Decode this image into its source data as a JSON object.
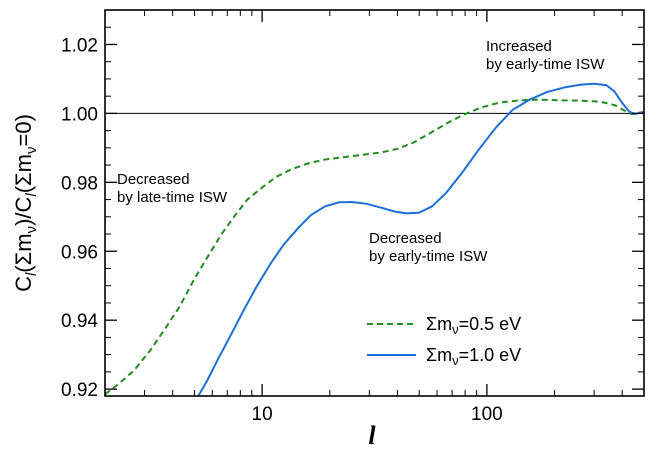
{
  "chart_data": {
    "type": "line",
    "xlabel": "l",
    "ylabel": {
      "parts": [
        {
          "t": "C",
          "s": "n"
        },
        {
          "t": "l",
          "s": "sub-italic"
        },
        {
          "t": "(Σm",
          "s": "n"
        },
        {
          "t": "ν",
          "s": "sub"
        },
        {
          "t": ")/C",
          "s": "n"
        },
        {
          "t": "l",
          "s": "sub-italic"
        },
        {
          "t": "(Σm",
          "s": "n"
        },
        {
          "t": "ν",
          "s": "sub"
        },
        {
          "t": "=0)",
          "s": "n"
        }
      ]
    },
    "x_scale": "log",
    "xlim": [
      2,
      500
    ],
    "ylim": [
      0.918,
      1.03
    ],
    "x_ticks": [
      {
        "value": 10,
        "label": "10"
      },
      {
        "value": 100,
        "label": "100"
      }
    ],
    "y_ticks": [
      {
        "value": 0.92,
        "label": "0.92"
      },
      {
        "value": 0.94,
        "label": "0.94"
      },
      {
        "value": 0.96,
        "label": "0.96"
      },
      {
        "value": 0.98,
        "label": "0.98"
      },
      {
        "value": 1.0,
        "label": "1.00"
      },
      {
        "value": 1.02,
        "label": "1.02"
      }
    ],
    "reference_line": {
      "y": 1.0
    },
    "legend_position": "bottom-right",
    "series": [
      {
        "name": "Σm_ν=0.5 eV",
        "legend": {
          "sym": "Σm",
          "sub": "ν",
          "rest": "=0.5 eV"
        },
        "color": "#228b22",
        "dash": "dashed",
        "points": [
          [
            2.0,
            0.9185
          ],
          [
            2.3,
            0.9215
          ],
          [
            2.7,
            0.9255
          ],
          [
            3.2,
            0.9315
          ],
          [
            3.7,
            0.9375
          ],
          [
            4.3,
            0.944
          ],
          [
            5.0,
            0.952
          ],
          [
            5.8,
            0.959
          ],
          [
            6.6,
            0.965
          ],
          [
            7.6,
            0.9705
          ],
          [
            8.6,
            0.975
          ],
          [
            10,
            0.9785
          ],
          [
            11.5,
            0.9815
          ],
          [
            13.5,
            0.9838
          ],
          [
            16,
            0.9855
          ],
          [
            19,
            0.9866
          ],
          [
            23,
            0.9873
          ],
          [
            28,
            0.988
          ],
          [
            34,
            0.9887
          ],
          [
            40,
            0.9897
          ],
          [
            47,
            0.9915
          ],
          [
            55,
            0.994
          ],
          [
            65,
            0.9968
          ],
          [
            78,
            0.9995
          ],
          [
            95,
            1.0018
          ],
          [
            115,
            1.0032
          ],
          [
            140,
            1.0038
          ],
          [
            170,
            1.004
          ],
          [
            210,
            1.0038
          ],
          [
            260,
            1.0037
          ],
          [
            320,
            1.0034
          ],
          [
            370,
            1.0024
          ],
          [
            410,
            1.0008
          ],
          [
            440,
            0.9998
          ],
          [
            465,
            1.0001
          ],
          [
            485,
            1.0003
          ],
          [
            500,
            1.0004
          ]
        ]
      },
      {
        "name": "Σm_ν=1.0 eV",
        "legend": {
          "sym": "Σm",
          "sub": "ν",
          "rest": "=1.0 eV"
        },
        "color": "#1c6fd6",
        "dash": "solid",
        "points": [
          [
            5.2,
            0.918
          ],
          [
            5.7,
            0.9225
          ],
          [
            6.4,
            0.929
          ],
          [
            7.3,
            0.936
          ],
          [
            8.3,
            0.943
          ],
          [
            9.5,
            0.95
          ],
          [
            11,
            0.9568
          ],
          [
            12.5,
            0.962
          ],
          [
            14.5,
            0.9668
          ],
          [
            16.5,
            0.9705
          ],
          [
            19,
            0.973
          ],
          [
            22,
            0.9742
          ],
          [
            25,
            0.9743
          ],
          [
            29,
            0.9738
          ],
          [
            34,
            0.9726
          ],
          [
            39,
            0.9715
          ],
          [
            44,
            0.971
          ],
          [
            50,
            0.9712
          ],
          [
            57,
            0.973
          ],
          [
            66,
            0.977
          ],
          [
            78,
            0.983
          ],
          [
            92,
            0.9895
          ],
          [
            110,
            0.996
          ],
          [
            130,
            1.001
          ],
          [
            155,
            1.004
          ],
          [
            185,
            1.0062
          ],
          [
            220,
            1.0075
          ],
          [
            260,
            1.0083
          ],
          [
            300,
            1.0086
          ],
          [
            340,
            1.0082
          ],
          [
            370,
            1.0063
          ],
          [
            400,
            1.003
          ],
          [
            430,
            1.0005
          ],
          [
            455,
            0.9998
          ],
          [
            480,
            1.0002
          ],
          [
            500,
            1.0004
          ]
        ]
      }
    ],
    "annotations": [
      {
        "lines": [
          "Increased",
          "by early-time ISW"
        ]
      },
      {
        "lines": [
          "Decreased",
          "by late-time ISW"
        ]
      },
      {
        "lines": [
          "Decreased",
          "by early-time ISW"
        ]
      }
    ]
  }
}
